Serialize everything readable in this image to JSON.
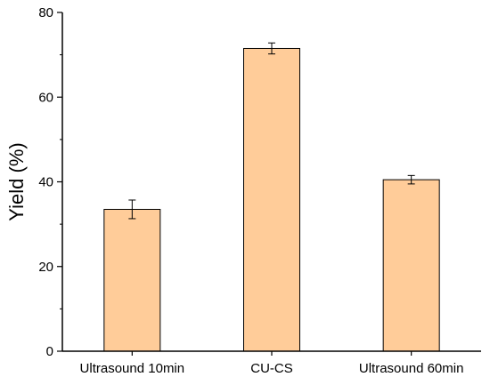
{
  "chart_data": {
    "type": "bar",
    "title": "",
    "xlabel": "",
    "ylabel": "Yield (%)",
    "categories": [
      "Ultrasound 10min",
      "CU-CS",
      "Ultrasound 60min"
    ],
    "values": [
      33.5,
      71.5,
      40.5
    ],
    "errors": [
      2.2,
      1.3,
      1.0
    ],
    "ylim": [
      0,
      80
    ],
    "yticks": [
      0,
      20,
      40,
      60,
      80
    ],
    "grid": false,
    "legend": "none",
    "colors": {
      "bar_fill": "#FFCC99",
      "bar_stroke": "#000000",
      "axis": "#000000"
    }
  }
}
